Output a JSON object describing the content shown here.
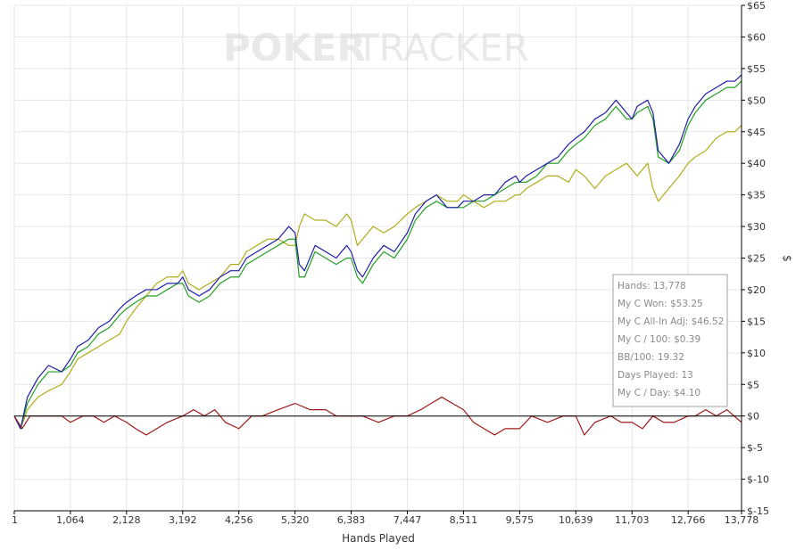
{
  "watermark": {
    "part1": "POKER",
    "part2": "TRACKER"
  },
  "stats_box": {
    "lines": [
      "Hands: 13,778",
      "My C Won: $53.25",
      "My C All-In Adj: $46.52",
      "My C / 100: $0.39",
      "BB/100: 19.32",
      "Days Played: 13",
      "My C / Day: $4.10"
    ]
  },
  "chart_data": {
    "type": "line",
    "title": "",
    "xlabel": "Hands Played",
    "ylabel": "$",
    "xlim": [
      1,
      13778
    ],
    "ylim": [
      -15,
      65
    ],
    "x_ticks": [
      1,
      1064,
      2128,
      3192,
      4256,
      5320,
      6383,
      7447,
      8511,
      9575,
      10639,
      11703,
      12766,
      13778
    ],
    "x_tick_labels": [
      "1",
      "1,064",
      "2,128",
      "3,192",
      "4,256",
      "5,320",
      "6,383",
      "7,447",
      "8,511",
      "9,575",
      "10,639",
      "11,703",
      "12,766",
      "13,778"
    ],
    "y_ticks": [
      -15,
      -10,
      -5,
      0,
      5,
      10,
      15,
      20,
      25,
      30,
      35,
      40,
      45,
      50,
      55,
      60,
      65
    ],
    "y_tick_labels": [
      "$-15",
      "$-10",
      "$-5",
      "$0",
      "$5",
      "$10",
      "$15",
      "$20",
      "$25",
      "$30",
      "$35",
      "$40",
      "$45",
      "$50",
      "$55",
      "$60",
      "$65"
    ],
    "grid": true,
    "zero_line": true,
    "colors": {
      "blue": "#1f1fa8",
      "green": "#22a022",
      "olive": "#b0ad1c",
      "red": "#9e1b1b",
      "grid": "#e6e6e6",
      "axis": "#000000"
    },
    "series": [
      {
        "color": "#1f1fa8",
        "x": [
          1,
          120,
          250,
          450,
          650,
          900,
          1064,
          1200,
          1400,
          1600,
          1800,
          2000,
          2128,
          2300,
          2500,
          2700,
          2900,
          3100,
          3192,
          3300,
          3500,
          3700,
          3900,
          4100,
          4256,
          4400,
          4600,
          4800,
          5000,
          5200,
          5320,
          5400,
          5500,
          5700,
          5900,
          6100,
          6300,
          6383,
          6500,
          6600,
          6800,
          7000,
          7200,
          7447,
          7600,
          7800,
          8000,
          8200,
          8400,
          8511,
          8700,
          8900,
          9100,
          9300,
          9500,
          9575,
          9700,
          9900,
          10100,
          10300,
          10500,
          10639,
          10800,
          11000,
          11200,
          11400,
          11600,
          11703,
          11800,
          12000,
          12100,
          12200,
          12400,
          12600,
          12766,
          12900,
          13100,
          13300,
          13500,
          13650,
          13778
        ],
        "values": [
          0,
          -2,
          3,
          6,
          8,
          7,
          9,
          11,
          12,
          14,
          15,
          17,
          18,
          19,
          20,
          20,
          21,
          21,
          22,
          20,
          19,
          20,
          22,
          23,
          23,
          25,
          26,
          27,
          28,
          30,
          29,
          24,
          23,
          27,
          26,
          25,
          27,
          26,
          23,
          22,
          25,
          27,
          26,
          29,
          32,
          34,
          35,
          33,
          33,
          34,
          34,
          35,
          35,
          37,
          38,
          37,
          38,
          39,
          40,
          41,
          43,
          44,
          45,
          47,
          48,
          50,
          48,
          47,
          49,
          50,
          48,
          42,
          40,
          43,
          47,
          49,
          51,
          52,
          53,
          53,
          54
        ]
      },
      {
        "color": "#22a022",
        "x": [
          1,
          120,
          250,
          450,
          650,
          900,
          1064,
          1200,
          1400,
          1600,
          1800,
          2000,
          2128,
          2300,
          2500,
          2700,
          2900,
          3100,
          3192,
          3300,
          3500,
          3700,
          3900,
          4100,
          4256,
          4400,
          4600,
          4800,
          5000,
          5200,
          5320,
          5400,
          5500,
          5700,
          5900,
          6100,
          6300,
          6383,
          6500,
          6600,
          6800,
          7000,
          7200,
          7447,
          7600,
          7800,
          8000,
          8200,
          8400,
          8511,
          8700,
          8900,
          9100,
          9300,
          9500,
          9575,
          9700,
          9900,
          10100,
          10300,
          10500,
          10639,
          10800,
          11000,
          11200,
          11400,
          11600,
          11703,
          11800,
          12000,
          12100,
          12200,
          12400,
          12600,
          12766,
          12900,
          13100,
          13300,
          13500,
          13650,
          13778
        ],
        "values": [
          0,
          -2,
          2,
          5,
          7,
          7,
          8,
          10,
          11,
          13,
          14,
          16,
          17,
          18,
          19,
          19,
          20,
          21,
          21,
          19,
          18,
          19,
          21,
          22,
          22,
          24,
          25,
          26,
          27,
          28,
          28,
          22,
          22,
          26,
          25,
          24,
          25,
          25,
          22,
          21,
          24,
          26,
          25,
          28,
          31,
          33,
          34,
          33,
          33,
          33,
          34,
          34,
          35,
          36,
          37,
          37,
          37,
          38,
          40,
          40,
          42,
          43,
          44,
          46,
          47,
          49,
          47,
          47,
          48,
          49,
          47,
          41,
          40,
          42,
          46,
          48,
          50,
          51,
          52,
          52,
          53
        ]
      },
      {
        "color": "#b0ad1c",
        "x": [
          1,
          120,
          250,
          450,
          650,
          900,
          1064,
          1200,
          1400,
          1600,
          1800,
          2000,
          2128,
          2300,
          2500,
          2700,
          2900,
          3100,
          3192,
          3300,
          3500,
          3700,
          3900,
          4100,
          4256,
          4400,
          4600,
          4800,
          5000,
          5200,
          5320,
          5400,
          5500,
          5700,
          5900,
          6100,
          6300,
          6383,
          6500,
          6600,
          6800,
          7000,
          7200,
          7447,
          7600,
          7800,
          8000,
          8200,
          8400,
          8511,
          8700,
          8900,
          9100,
          9300,
          9500,
          9575,
          9700,
          9900,
          10100,
          10300,
          10500,
          10639,
          10800,
          11000,
          11200,
          11400,
          11600,
          11703,
          11800,
          12000,
          12100,
          12200,
          12400,
          12600,
          12766,
          12900,
          13100,
          13300,
          13500,
          13650,
          13778
        ],
        "values": [
          0,
          -2,
          1,
          3,
          4,
          5,
          7,
          9,
          10,
          11,
          12,
          13,
          15,
          17,
          19,
          21,
          22,
          22,
          23,
          21,
          20,
          21,
          22,
          24,
          24,
          26,
          27,
          28,
          28,
          27,
          27,
          30,
          32,
          31,
          31,
          30,
          32,
          31,
          27,
          28,
          30,
          29,
          30,
          32,
          33,
          34,
          35,
          34,
          34,
          35,
          34,
          33,
          34,
          34,
          35,
          35,
          36,
          37,
          38,
          38,
          37,
          39,
          38,
          36,
          38,
          39,
          40,
          39,
          38,
          40,
          36,
          34,
          36,
          38,
          40,
          41,
          42,
          44,
          45,
          45,
          46
        ]
      },
      {
        "color": "#9e1b1b",
        "x": [
          1,
          150,
          300,
          500,
          700,
          900,
          1064,
          1300,
          1500,
          1700,
          1900,
          2128,
          2300,
          2500,
          2700,
          2900,
          3192,
          3400,
          3600,
          3800,
          4000,
          4256,
          4500,
          4700,
          5000,
          5320,
          5600,
          5900,
          6100,
          6383,
          6600,
          6900,
          7200,
          7447,
          7700,
          7900,
          8100,
          8300,
          8511,
          8700,
          8900,
          9100,
          9300,
          9575,
          9800,
          10100,
          10400,
          10639,
          10800,
          11000,
          11300,
          11500,
          11703,
          11900,
          12100,
          12300,
          12500,
          12766,
          12900,
          13100,
          13300,
          13500,
          13778
        ],
        "values": [
          0,
          -2,
          0,
          0,
          0,
          0,
          -1,
          0,
          0,
          -1,
          0,
          -1,
          -2,
          -3,
          -2,
          -1,
          0,
          1,
          0,
          1,
          -1,
          -2,
          0,
          0,
          1,
          2,
          1,
          1,
          0,
          0,
          0,
          -1,
          0,
          0,
          1,
          2,
          3,
          2,
          1,
          -1,
          -2,
          -3,
          -2,
          -2,
          0,
          -1,
          0,
          0,
          -3,
          -1,
          0,
          -1,
          -1,
          -2,
          0,
          -1,
          -1,
          0,
          0,
          1,
          0,
          1,
          -1
        ]
      }
    ]
  }
}
